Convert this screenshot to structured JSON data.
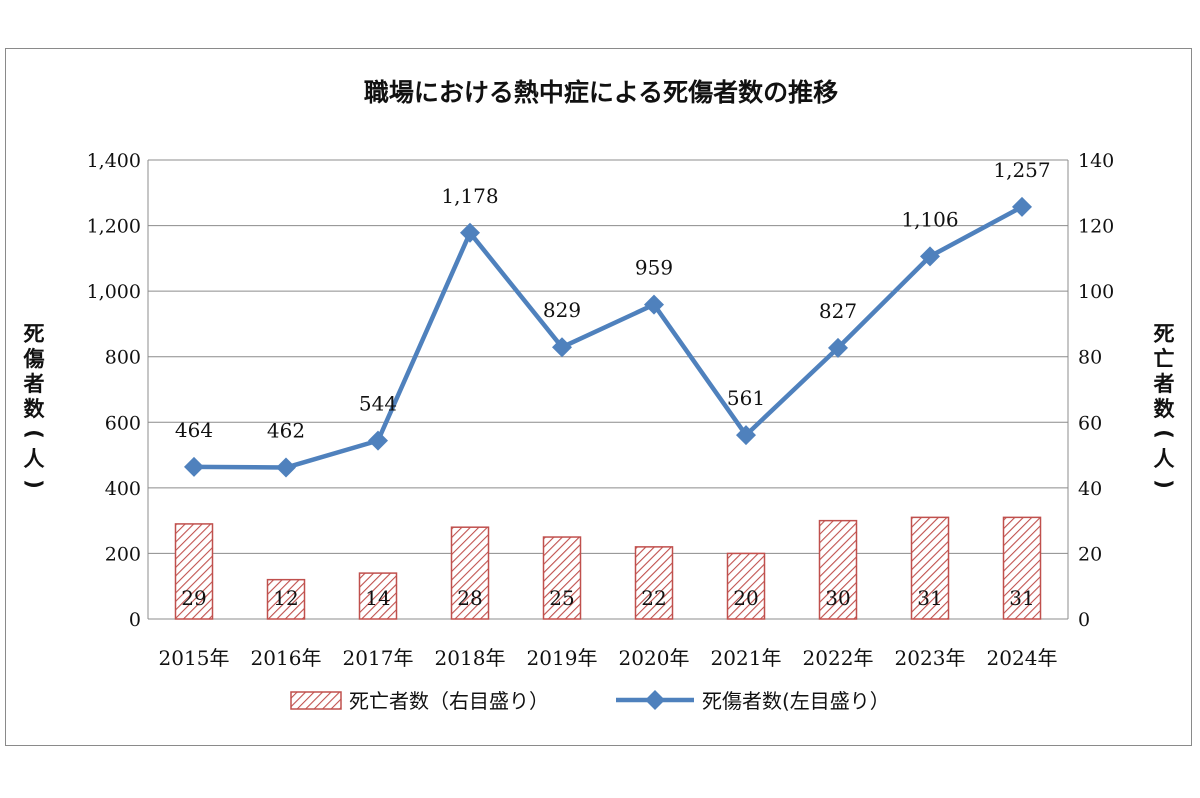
{
  "chart_data": {
    "type": "bar+line",
    "title": "職場における熱中症による死傷者数の推移",
    "categories": [
      "2015年",
      "2016年",
      "2017年",
      "2018年",
      "2019年",
      "2020年",
      "2021年",
      "2022年",
      "2023年",
      "2024年"
    ],
    "series": [
      {
        "name": "死亡者数（右目盛り）",
        "type": "bar",
        "axis": "right",
        "values": [
          29,
          12,
          14,
          28,
          25,
          22,
          20,
          30,
          31,
          31
        ],
        "color": "#c0504d"
      },
      {
        "name": "死傷者数(左目盛り）",
        "type": "line",
        "axis": "left",
        "values": [
          464,
          462,
          544,
          1178,
          829,
          959,
          561,
          827,
          1106,
          1257
        ],
        "color": "#4f81bd"
      }
    ],
    "left_axis": {
      "label": "死傷者数(人)",
      "ylim": [
        0,
        1400
      ],
      "ticks": [
        "0",
        "200",
        "400",
        "600",
        "800",
        "1,000",
        "1,200",
        "1,400"
      ]
    },
    "right_axis": {
      "label": "死亡者数(人)",
      "ylim": [
        0,
        140
      ],
      "ticks": [
        "0",
        "20",
        "40",
        "60",
        "80",
        "100",
        "120",
        "140"
      ]
    },
    "line_labels": [
      "464",
      "462",
      "544",
      "1,178",
      "829",
      "959",
      "561",
      "827",
      "1,106",
      "1,257"
    ],
    "grid": true,
    "legend": "bottom"
  }
}
